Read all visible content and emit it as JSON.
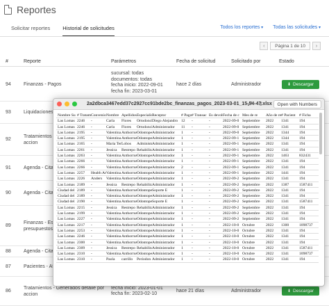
{
  "header": {
    "title": "Reportes"
  },
  "tabs": [
    {
      "label": "Solicitar reportes"
    },
    {
      "label": "Historial de solicitudes"
    }
  ],
  "filters": {
    "reports": "Todos los reportes",
    "requests": "Todas las solicitudes"
  },
  "pager": {
    "label": "Página 1 de 10"
  },
  "table": {
    "headers": [
      "#",
      "Reporte",
      "Parámetros",
      "Fecha de solicitud",
      "Solicitado por",
      "Estado"
    ],
    "rows": [
      {
        "num": "94",
        "report": "Finanzas - Pagos",
        "params": [
          "sucursal: todas",
          "documentos: todas",
          "fecha inicio: 2022-09-01",
          "fecha fin: 2023-03-01"
        ],
        "date": "hace 2 días",
        "by": "Administrador",
        "status": "Descargar"
      },
      {
        "num": "93",
        "report": "Liquidaciones",
        "params": [],
        "date": "",
        "by": "",
        "status": ""
      },
      {
        "num": "92",
        "report": "Tratamientos - ...",
        "report2": "accion",
        "params": [],
        "date": "",
        "by": "",
        "status": ""
      },
      {
        "num": "91",
        "report": "Agenda - Citas",
        "params": [],
        "date": "",
        "by": "",
        "status": ""
      },
      {
        "num": "90",
        "report": "Agenda - Citas",
        "params": [],
        "date": "",
        "by": "",
        "status": ""
      },
      {
        "num": "89",
        "report": "Finanzas - Esta...",
        "report2": "presupuestos",
        "params": [],
        "date": "",
        "by": "",
        "status": ""
      },
      {
        "num": "88",
        "report": "Agenda - Citas",
        "params": [],
        "date": "",
        "by": "",
        "status": ""
      },
      {
        "num": "87",
        "report": "Pacientes - Afil...",
        "params": [],
        "date": "",
        "by": "",
        "status": ""
      },
      {
        "num": "86",
        "report": "Tratamientos - Generados detalle por",
        "report2": "accion",
        "params": [
          "sucursal: 2",
          "fecha inicio: 2023-01-01",
          "fecha fin: 2023-02-10"
        ],
        "date": "hace 21 días",
        "by": "Administrador",
        "status": "Descargar"
      }
    ]
  },
  "preview": {
    "title": "2a2dbca3467edd37c2927cc91bde2bc_finanzas_pagos_2023-03-01_15-54-47.xlsx",
    "open_label": "Open with Numbers",
    "headers": [
      "Nombre Su",
      "# Tratami",
      "Convenio",
      "Nombre",
      "Apellidos",
      "Especialid",
      "Receptor",
      "# Pago",
      "# Transac",
      "Es devolu",
      "Fecha de c",
      "Mes de re",
      "Año de re",
      "# Pacient",
      "# Ficha"
    ],
    "rows": [
      [
        "Las Lomas",
        "2246",
        "-",
        "Carla",
        "Flores",
        "Ortodonci",
        "Diego Alejandro",
        "12",
        "-",
        "-",
        "2022-09-0",
        "Septiembre",
        "2022",
        "1341",
        "194"
      ],
      [
        "Las Lomas",
        "2246",
        "-",
        "Carla",
        "Flores",
        "Ortodonci",
        "Administrador",
        "11",
        "-",
        "-",
        "2022-09-0",
        "Septiembre",
        "2022",
        "1341",
        "194"
      ],
      [
        "Las Lomas",
        "2195",
        "-",
        "Valentina",
        "Anthorrus",
        "Odontope",
        "Administrador",
        "1",
        "-",
        "-",
        "2022-09-0",
        "Septiembre",
        "2022",
        "1344",
        "194"
      ],
      [
        "Las Lomas",
        "2195",
        "-",
        "Valentina",
        "Anthorrus",
        "Odontope",
        "Administrador",
        "1",
        "-",
        "-",
        "2022-09-1",
        "Septiembre",
        "2022",
        "1344",
        "194"
      ],
      [
        "Las Lomas",
        "2165",
        "-",
        "Maria Tere",
        "Lobos",
        "Administr",
        "Administrador",
        "1",
        "-",
        "-",
        "2022-09-1",
        "Septiembre",
        "2022",
        "1341",
        "194"
      ],
      [
        "Las Lomas",
        "2261",
        "-",
        "Jessica",
        "Restrepo",
        "Rehabilita",
        "Administrador",
        "1",
        "-",
        "-",
        "2022-09-1",
        "Septiembre",
        "2022",
        "1341",
        "194"
      ],
      [
        "Las Lomas",
        "2263",
        "-",
        "Valentina",
        "Anthorrus",
        "Odontope",
        "Administrador",
        "1",
        "-",
        "-",
        "2022-09-1",
        "Septiembre",
        "2022",
        "1463",
        "832431"
      ],
      [
        "Las Lomas",
        "2266",
        "-",
        "Valentina",
        "Anthorrus",
        "Odontope",
        "Administrador",
        "1",
        "-",
        "-",
        "2022-09-1",
        "Septiembre",
        "2022",
        "1341",
        "194"
      ],
      [
        "Las Lomas",
        "2266",
        "-",
        "Valentina",
        "Anthorrus",
        "Odontope",
        "Administrador",
        "2",
        "-",
        "-",
        "2022-09-1",
        "Septiembre",
        "2022",
        "1341",
        "194"
      ],
      [
        "Las Lomas",
        "2257",
        "Health An",
        "Valentina",
        "Anthorrus",
        "Odontope",
        "Administrador",
        "1",
        "-",
        "-",
        "2022-09-1",
        "Septiembre",
        "2022",
        "1441",
        "194"
      ],
      [
        "Las Lomas",
        "2226",
        "Anders",
        "Valentina",
        "Anthorrus",
        "Odontope",
        "Administrador",
        "1",
        "-",
        "-",
        "2022-09-2",
        "Septiembre",
        "2022",
        "1341",
        "194"
      ],
      [
        "Las Lomas",
        "2189",
        "-",
        "Jessica",
        "Restrepo",
        "Rehabilita",
        "Administrador",
        "1",
        "-",
        "-",
        "2022-09-2",
        "Septiembre",
        "2022",
        "1387",
        "1587411"
      ],
      [
        "Ciudad del",
        "2189",
        "-",
        "Valentina",
        "Anthorrus",
        "Odontope",
        "Soporte E",
        "1",
        "-",
        "-",
        "2022-09-2",
        "Septiembre",
        "2022",
        "1341",
        "194"
      ],
      [
        "Ciudad del",
        "2189",
        "-",
        "Valentina",
        "Anthorrus",
        "Odontope",
        "Administrador",
        "1",
        "-",
        "-",
        "2022-09-2",
        "Septiembre",
        "2022",
        "1341",
        "194"
      ],
      [
        "Ciudad del",
        "2190",
        "-",
        "Valentina",
        "Anthorrus",
        "Odontope",
        "Soporte E",
        "1",
        "-",
        "-",
        "2022-09-2",
        "Septiembre",
        "2022",
        "1341",
        "1587411"
      ],
      [
        "Las Lomas",
        "2215",
        "-",
        "Jessica",
        "Restrepo",
        "Rehabilita",
        "Administrador",
        "1",
        "-",
        "-",
        "2022-09-2",
        "Septiembre",
        "2022",
        "1341",
        "194"
      ],
      [
        "Las Lomas",
        "2199",
        "-",
        "Valentina",
        "Anthorrus",
        "Odontope",
        "Administrador",
        "1",
        "-",
        "-",
        "2022-09-2",
        "Septiembre",
        "2022",
        "1341",
        "194"
      ],
      [
        "Las Lomas",
        "2227",
        "-",
        "Valentina",
        "Anthorrus",
        "Odontope",
        "Administrador",
        "1",
        "-",
        "-",
        "2022-09-2",
        "Septiembre",
        "2022",
        "1341",
        "194"
      ],
      [
        "Las Lomas",
        "2217",
        "-",
        "Valentina",
        "Anthorrus",
        "Odontope",
        "Administrador",
        "1",
        "-",
        "-",
        "2022-10-0",
        "Octubre",
        "2022",
        "1300",
        "1098737"
      ],
      [
        "Las Lomas",
        "2253",
        "-",
        "Valentina",
        "Anthorrus",
        "Odontope",
        "Administrador",
        "1",
        "-",
        "-",
        "2022-10-0",
        "Octubre",
        "2022",
        "1341",
        "194"
      ],
      [
        "Las Lomas",
        "2246",
        "-",
        "Valentina",
        "Anthorrus",
        "Odontope",
        "Administrador",
        "1",
        "-",
        "-",
        "2022-10-0",
        "Octubre",
        "2022",
        "1341",
        "194"
      ],
      [
        "Las Lomas",
        "2300",
        "-",
        "Valentina",
        "Anthorrus",
        "Odontope",
        "Administrador",
        "1",
        "-",
        "-",
        "2022-10-0",
        "Octubre",
        "2022",
        "1341",
        "194"
      ],
      [
        "Las Lomas",
        "2309",
        "-",
        "Jessica",
        "Restrepo",
        "Rehabilita",
        "Administrador",
        "1",
        "-",
        "-",
        "2022-10-0",
        "Octubre",
        "2022",
        "1341",
        "1587411"
      ],
      [
        "Las Lomas",
        "2310",
        "-",
        "Valentina",
        "Anthorrus",
        "Odontope",
        "Administrador",
        "1",
        "-",
        "-",
        "2022-10-0",
        "Octubre",
        "2022",
        "1341",
        "1098737"
      ],
      [
        "Las Lomas",
        "2310",
        "-",
        "Paola",
        "carrillo",
        "Periodon",
        "Administrador",
        "1",
        "-",
        "-",
        "2022-10-0",
        "Octubre",
        "2022",
        "1341",
        "194"
      ]
    ]
  }
}
